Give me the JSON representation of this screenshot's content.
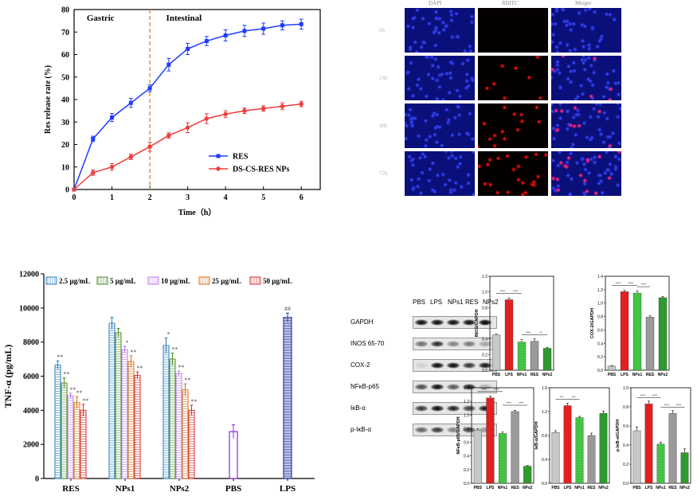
{
  "release_chart": {
    "chart_data": {
      "type": "line",
      "xlabel": "Time（h）",
      "ylabel": "Res release rate (%)",
      "xlim": [
        0,
        6.5
      ],
      "ylim": [
        0,
        80
      ],
      "xticks": [
        "0",
        "1",
        "2",
        "3",
        "4",
        "5",
        "6"
      ],
      "yticks": [
        "0",
        "10",
        "20",
        "30",
        "40",
        "50",
        "60",
        "70",
        "80"
      ],
      "annotations": [
        "Gastric",
        "Intestinal"
      ],
      "divider_x": 2,
      "series": [
        {
          "name": "RES",
          "color": "#1f3cff",
          "marker": "square",
          "x": [
            0,
            0.5,
            1,
            1.5,
            2,
            2.5,
            3,
            3.5,
            4,
            4.5,
            5,
            5.5,
            6
          ],
          "y": [
            0,
            22.5,
            32,
            38.5,
            45,
            55.5,
            62.5,
            66,
            68.5,
            70.5,
            71.5,
            73,
            73.5
          ],
          "err": [
            0,
            1.2,
            1.8,
            2,
            1.5,
            2.8,
            2.5,
            2,
            2.5,
            2.5,
            2.5,
            2,
            2.2
          ]
        },
        {
          "name": "DS-CS-RES NPs",
          "color": "#ef3b3b",
          "marker": "circle",
          "x": [
            0,
            0.5,
            1,
            1.5,
            2,
            2.5,
            3,
            3.5,
            4,
            4.5,
            5,
            5.5,
            6
          ],
          "y": [
            0,
            7.5,
            10,
            14.5,
            19,
            24,
            27.5,
            31.5,
            33.5,
            35,
            36,
            37,
            38
          ],
          "err": [
            0,
            1.2,
            1.5,
            1.2,
            2,
            1.2,
            2.2,
            2.2,
            1.5,
            1.2,
            1.2,
            1.5,
            1.2
          ]
        }
      ]
    }
  },
  "microscopy": {
    "columns": [
      "DAPI",
      "RBITC",
      "Merger"
    ],
    "rows": [
      "0h",
      "24h",
      "48h",
      "72h"
    ]
  },
  "tnf_chart": {
    "chart_data": {
      "type": "bar",
      "ylabel": "TNF-α (pg/mL)",
      "ylim": [
        0,
        12000
      ],
      "yticks": [
        "0",
        "2000",
        "4000",
        "6000",
        "8000",
        "10000",
        "12000"
      ],
      "categories": [
        "RES",
        "NPs1",
        "NPs2",
        "PBS",
        "LPS"
      ],
      "series": [
        {
          "name": "2.5 μg/mL",
          "color": "#2a7fb8",
          "values": [
            6650,
            9100,
            7800,
            null,
            null
          ],
          "err": [
            250,
            350,
            450,
            null,
            null
          ],
          "sig": [
            "**",
            "",
            "*",
            null,
            null
          ]
        },
        {
          "name": "5 μg/mL",
          "color": "#4b8b2a",
          "values": [
            5600,
            8550,
            7000,
            null,
            null
          ],
          "err": [
            300,
            250,
            350,
            null,
            null
          ],
          "sig": [
            "**",
            "",
            "**",
            null,
            null
          ]
        },
        {
          "name": "10 μg/mL",
          "color": "#b77ee6",
          "values": [
            4850,
            7550,
            6150,
            null,
            null
          ],
          "err": [
            150,
            200,
            150,
            null,
            null
          ],
          "sig": [
            "**",
            "*",
            "**",
            null,
            null
          ]
        },
        {
          "name": "25 μg/mL",
          "color": "#d9731e",
          "values": [
            4450,
            6850,
            5200,
            null,
            null
          ],
          "err": [
            350,
            350,
            350,
            null,
            null
          ],
          "sig": [
            "**",
            "**",
            "**",
            null,
            null
          ]
        },
        {
          "name": "50 μg/mL",
          "color": "#d83131",
          "values": [
            4000,
            6050,
            4000,
            null,
            null
          ],
          "err": [
            350,
            200,
            300,
            null,
            null
          ],
          "sig": [
            "**",
            "**",
            "**",
            null,
            null
          ]
        }
      ],
      "extra_bars": [
        {
          "category": "PBS",
          "value": 2750,
          "err": 400,
          "color": "#8b2ad9",
          "sig": ""
        },
        {
          "category": "LPS",
          "value": 9450,
          "err": 250,
          "color": "#2c3fa0",
          "sig": "##"
        }
      ]
    }
  },
  "western_blot": {
    "lanes": [
      "PBS",
      "LPS",
      "NPs1",
      "RES",
      "NPs2"
    ],
    "proteins": [
      "GAPDH",
      "INOS 65-70",
      "COX-2",
      "NFκB-p65",
      "IκB-α",
      "p-IκB-α"
    ]
  },
  "mini_charts": {
    "chart_data": [
      {
        "type": "bar",
        "ylabel": "INOS/GAPDH",
        "categories": [
          "PBS",
          "LPS",
          "NPs1",
          "RES",
          "NPs2"
        ],
        "values": [
          0.45,
          0.9,
          0.36,
          0.37,
          0.28
        ],
        "err": [
          0.01,
          0.02,
          0.03,
          0.03,
          0.01
        ],
        "ylim": [
          0,
          1.2
        ],
        "yticks": [
          "0.0",
          "0.2",
          "0.4",
          "0.6",
          "0.8",
          "1.0",
          "1.2"
        ],
        "sig": [
          "****",
          "****",
          "****",
          "**"
        ]
      },
      {
        "type": "bar",
        "ylabel": "COX-2/GAPDH",
        "categories": [
          "PBS",
          "LPS",
          "NPs1",
          "RES",
          "NPs2"
        ],
        "values": [
          0.06,
          1.17,
          1.15,
          0.79,
          1.08
        ],
        "err": [
          0.01,
          0.02,
          0.03,
          0.02,
          0.02
        ],
        "ylim": [
          0,
          1.4
        ],
        "yticks": [
          "0.0",
          "0.2",
          "0.4",
          "0.6",
          "0.8",
          "1.0",
          "1.2",
          "1.4"
        ],
        "sig": [
          "****",
          "****",
          "****"
        ]
      },
      {
        "type": "bar",
        "ylabel": "NFκB-p65/GAPDH",
        "categories": [
          "PBS",
          "LPS",
          "NPs1",
          "RES",
          "NPs2"
        ],
        "values": [
          0.78,
          1.25,
          0.73,
          1.05,
          0.25
        ],
        "err": [
          0.02,
          0.03,
          0.02,
          0.02,
          0.01
        ],
        "ylim": [
          0,
          1.4
        ],
        "yticks": [
          "0.0",
          "0.2",
          "0.4",
          "0.6",
          "0.8",
          "1.0",
          "1.2",
          "1.4"
        ],
        "sig": [
          "****",
          "****",
          "****",
          "****"
        ]
      },
      {
        "type": "bar",
        "ylabel": "IκB-α/GAPDH",
        "categories": [
          "PBS",
          "LPS",
          "NPs1",
          "RES",
          "NPs2"
        ],
        "values": [
          0.85,
          1.3,
          1.1,
          0.8,
          1.17
        ],
        "err": [
          0.03,
          0.04,
          0.02,
          0.04,
          0.04
        ],
        "ylim": [
          0,
          1.6
        ],
        "yticks": [
          "0.0",
          "0.4",
          "0.8",
          "1.2",
          "1.6"
        ],
        "sig": [
          "***",
          "***"
        ]
      },
      {
        "type": "bar",
        "ylabel": "p-IκB-α/GAPDH",
        "categories": [
          "PBS",
          "LPS",
          "NPs1",
          "RES",
          "NPs2"
        ],
        "values": [
          0.55,
          0.83,
          0.41,
          0.73,
          0.32
        ],
        "err": [
          0.04,
          0.03,
          0.02,
          0.03,
          0.04
        ],
        "ylim": [
          0,
          1.0
        ],
        "yticks": [
          "0.0",
          "0.2",
          "0.4",
          "0.6",
          "0.8",
          "1.0"
        ],
        "sig": [
          "****",
          "****",
          "****",
          "****"
        ]
      }
    ],
    "bar_colors": [
      "#c8c8c8",
      "#e41f1f",
      "#4dd24d",
      "#9a9a9a",
      "#2e9b2e"
    ]
  }
}
